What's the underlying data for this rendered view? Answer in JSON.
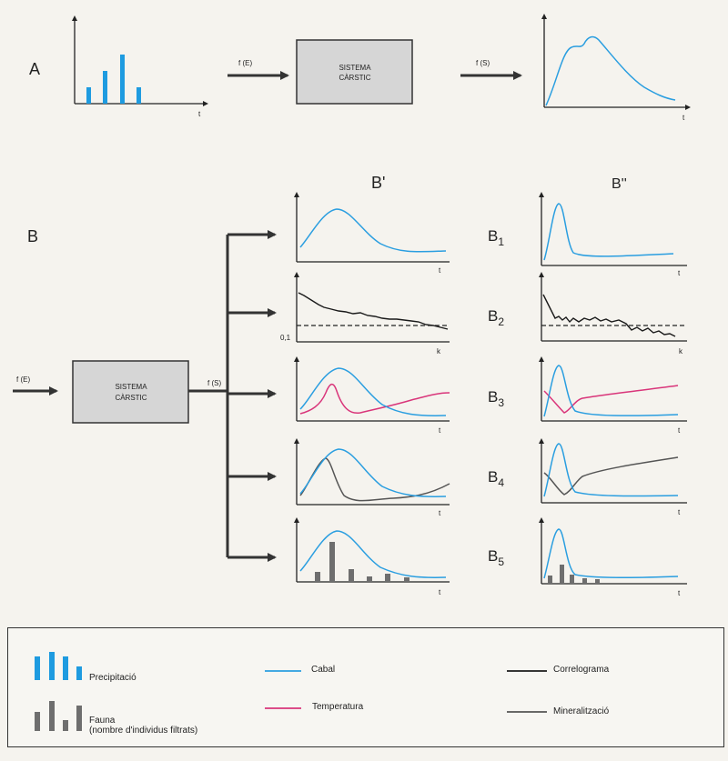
{
  "section_a": {
    "label": "A",
    "input_label": "f (E)",
    "output_label": "f (S)",
    "system_line1": "SISTEMA",
    "system_line2": "CÀRSTIC",
    "axis_t": "t"
  },
  "section_b": {
    "label": "B",
    "input_label": "f (E)",
    "output_label": "f (S)",
    "system_line1": "SISTEMA",
    "system_line2": "CÀRSTIC",
    "col1_header": "B'",
    "col2_header": "B''",
    "rows": [
      {
        "id": "B",
        "sub": "1",
        "axis": "t"
      },
      {
        "id": "B",
        "sub": "2",
        "axis": "k",
        "ref_value": "0,1"
      },
      {
        "id": "B",
        "sub": "3",
        "axis": "t"
      },
      {
        "id": "B",
        "sub": "4",
        "axis": "t"
      },
      {
        "id": "B",
        "sub": "5",
        "axis": "t"
      }
    ]
  },
  "legend": {
    "precipitacio": "Precipitació",
    "fauna_line1": "Fauna",
    "fauna_line2": "(nombre d'individus filtrats)",
    "cabal": "Cabal",
    "temperatura": "Temperatura",
    "correlograma": "Correlograma",
    "mineralitzacio": "Mineralització"
  },
  "colors": {
    "cabal": "#2a9ee0",
    "temperatura": "#d9357a",
    "correlograma": "#1a1a1a",
    "mineralitzacio": "#555555",
    "precipitacio": "#1e9be0",
    "fauna": "#6e6e6e",
    "system_box": "#d6d6d6"
  }
}
